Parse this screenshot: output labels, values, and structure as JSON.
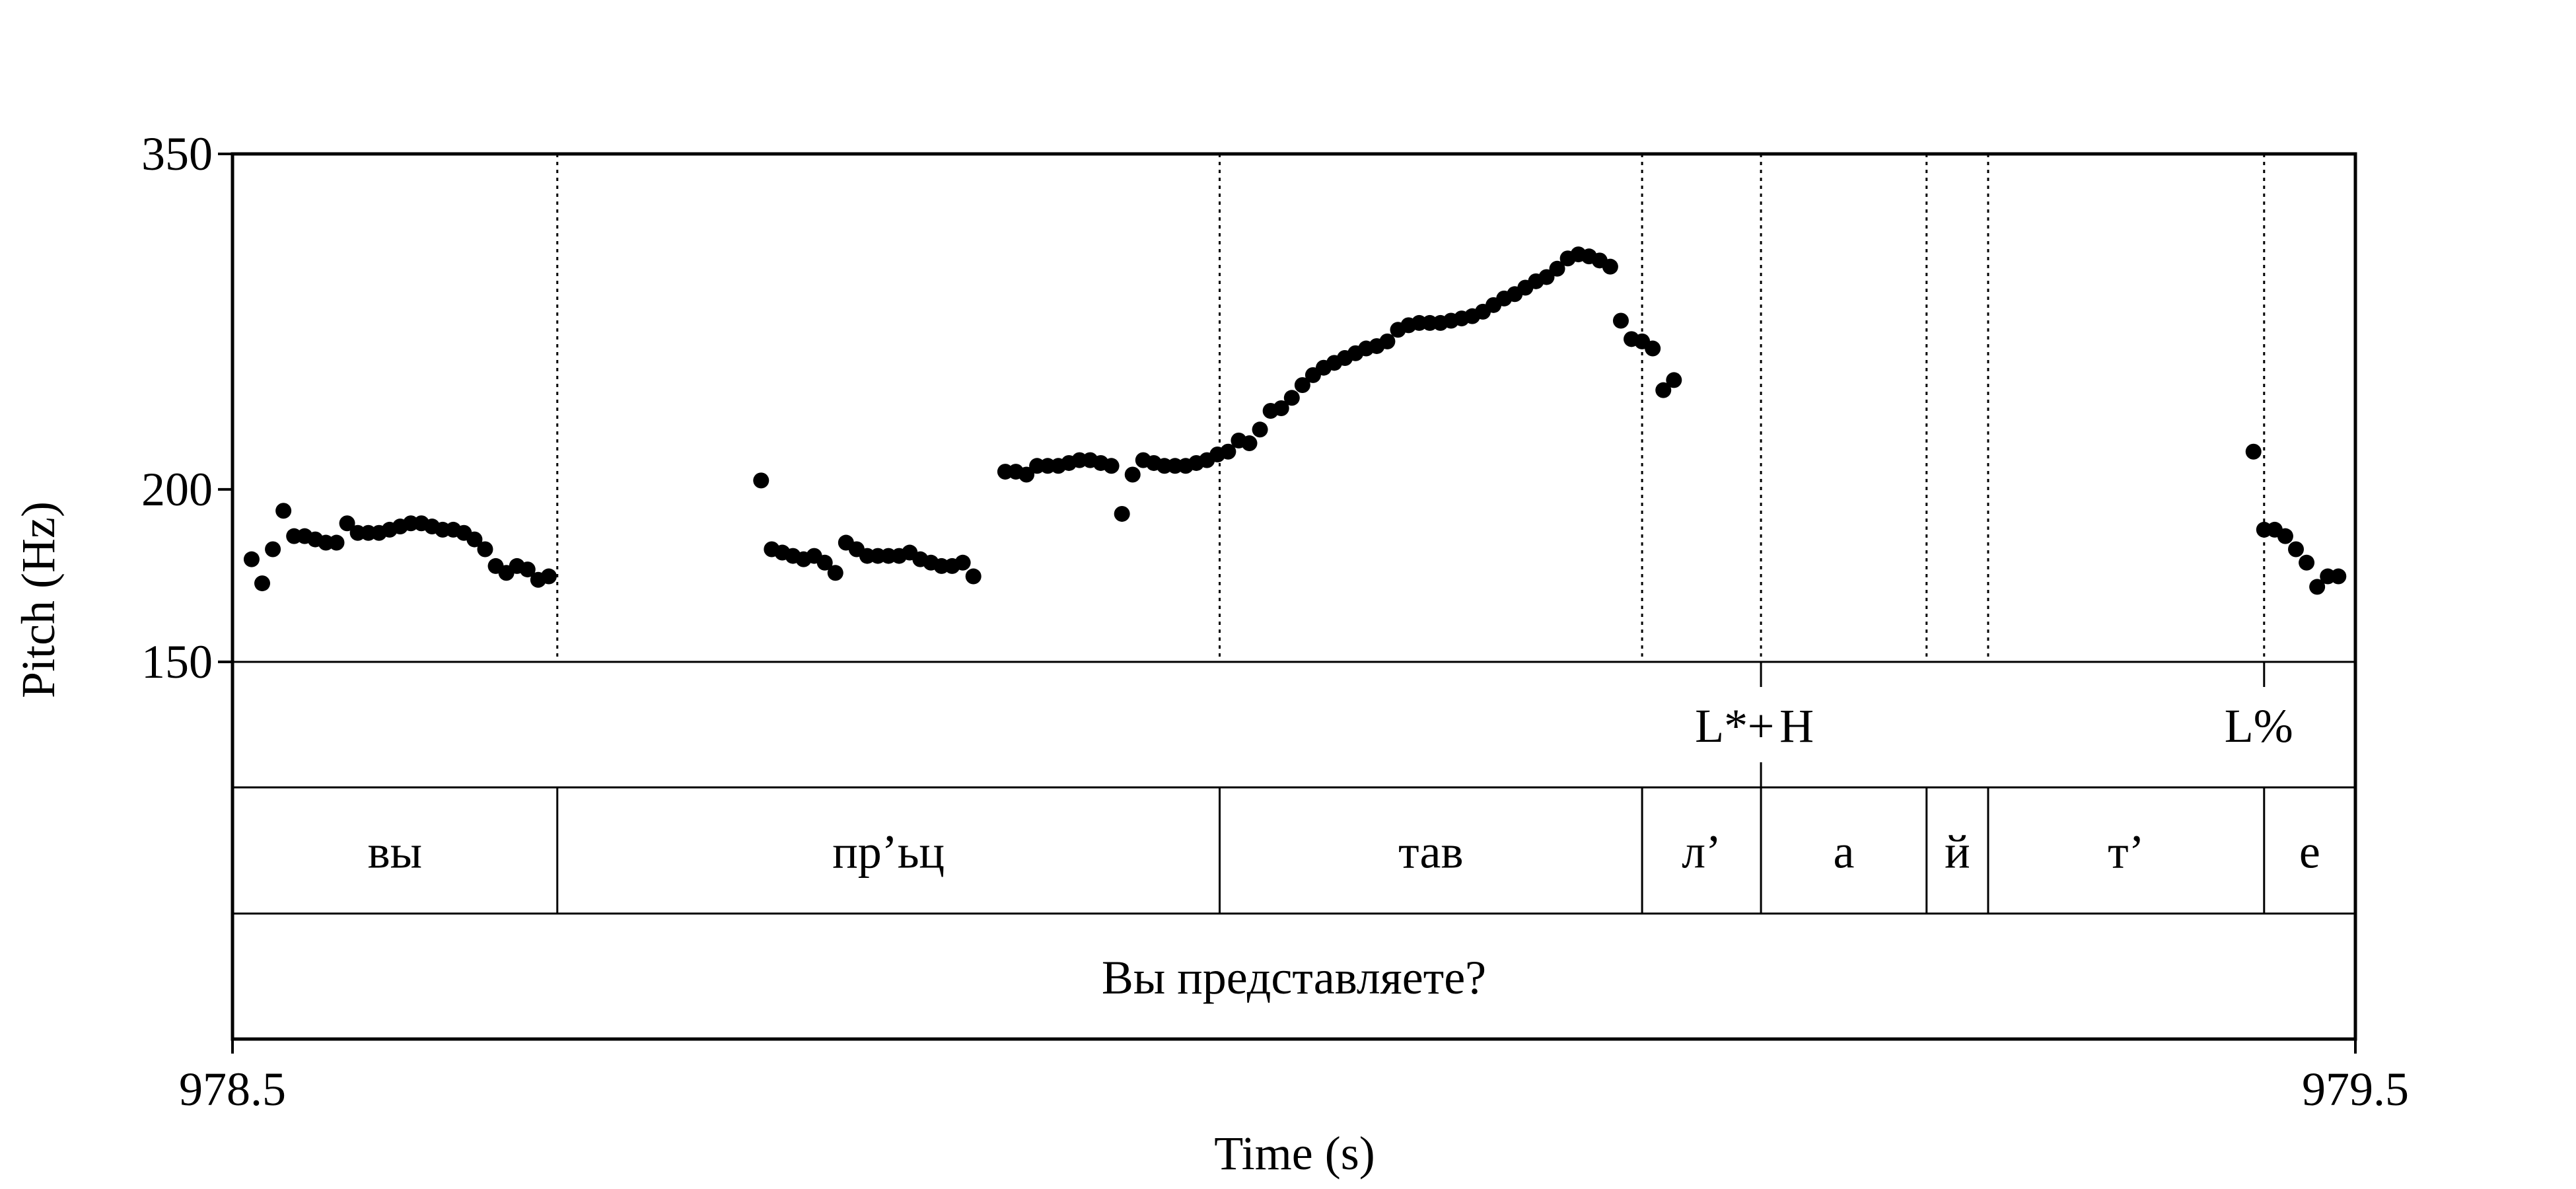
{
  "chart_data": {
    "type": "scatter",
    "xlabel": "Time (s)",
    "ylabel": "Pitch (Hz)",
    "xlim": [
      978.5,
      979.5
    ],
    "ylim": [
      150,
      350
    ],
    "x_tick_labels": [
      "978.5",
      "979.5"
    ],
    "x_ticks": [
      978.5,
      979.5
    ],
    "y_tick_labels": [
      "150",
      "200",
      "350"
    ],
    "y_ticks": [
      150,
      200,
      350
    ],
    "y_scale": "log",
    "boundaries": [
      978.653,
      978.965,
      979.164,
      979.22,
      979.298,
      979.327,
      979.457
    ],
    "tiers": [
      {
        "name": "tones",
        "intervals": [
          {
            "start": 979.164,
            "end": 979.22,
            "boundary_label": "L*",
            "point_time": 979.22,
            "mark": "+",
            "after_label": "H"
          },
          {
            "start": 979.457,
            "end": 979.5,
            "label": "L%"
          }
        ],
        "labels": {
          "l_star": "L*",
          "plus": "+",
          "h": "H",
          "l_percent": "L%"
        }
      },
      {
        "name": "syllables",
        "intervals": [
          {
            "start": 978.5,
            "end": 978.653,
            "label": "вы"
          },
          {
            "start": 978.653,
            "end": 978.965,
            "label": "пр’ьц"
          },
          {
            "start": 978.965,
            "end": 979.164,
            "label": "тав"
          },
          {
            "start": 979.164,
            "end": 979.22,
            "label": "л’"
          },
          {
            "start": 979.22,
            "end": 979.298,
            "label": "а"
          },
          {
            "start": 979.298,
            "end": 979.327,
            "label": "й"
          },
          {
            "start": 979.327,
            "end": 979.457,
            "label": "т’"
          },
          {
            "start": 979.457,
            "end": 979.5,
            "label": "е"
          }
        ]
      },
      {
        "name": "utterance",
        "intervals": [
          {
            "start": 978.5,
            "end": 979.5,
            "label": "Вы представляете?"
          }
        ]
      }
    ],
    "series": [
      {
        "points": [
          [
            978.509,
            178
          ],
          [
            978.514,
            171
          ],
          [
            978.519,
            181
          ],
          [
            978.524,
            193
          ],
          [
            978.529,
            185
          ],
          [
            978.534,
            185
          ],
          [
            978.539,
            184
          ],
          [
            978.544,
            183
          ],
          [
            978.549,
            183
          ],
          [
            978.554,
            189
          ],
          [
            978.559,
            186
          ],
          [
            978.564,
            186
          ],
          [
            978.569,
            186
          ],
          [
            978.574,
            187
          ],
          [
            978.579,
            188
          ],
          [
            978.584,
            189
          ],
          [
            978.589,
            189
          ],
          [
            978.594,
            188
          ],
          [
            978.599,
            187
          ],
          [
            978.604,
            187
          ],
          [
            978.609,
            186
          ],
          [
            978.614,
            184
          ],
          [
            978.619,
            181
          ],
          [
            978.624,
            176
          ],
          [
            978.629,
            174
          ],
          [
            978.634,
            176
          ],
          [
            978.639,
            175
          ],
          [
            978.644,
            172
          ],
          [
            978.649,
            173
          ],
          [
            978.749,
            203
          ],
          [
            978.754,
            181
          ],
          [
            978.759,
            180
          ],
          [
            978.764,
            179
          ],
          [
            978.769,
            178
          ],
          [
            978.774,
            179
          ],
          [
            978.779,
            177
          ],
          [
            978.784,
            174
          ],
          [
            978.789,
            183
          ],
          [
            978.794,
            181
          ],
          [
            978.799,
            179
          ],
          [
            978.804,
            179
          ],
          [
            978.809,
            179
          ],
          [
            978.814,
            179
          ],
          [
            978.819,
            180
          ],
          [
            978.824,
            178
          ],
          [
            978.829,
            177
          ],
          [
            978.834,
            176
          ],
          [
            978.839,
            176
          ],
          [
            978.844,
            177
          ],
          [
            978.849,
            173
          ],
          [
            978.864,
            206
          ],
          [
            978.869,
            206
          ],
          [
            978.874,
            205
          ],
          [
            978.879,
            208
          ],
          [
            978.884,
            208
          ],
          [
            978.889,
            208
          ],
          [
            978.894,
            209
          ],
          [
            978.899,
            210
          ],
          [
            978.904,
            210
          ],
          [
            978.909,
            209
          ],
          [
            978.914,
            208
          ],
          [
            978.919,
            192
          ],
          [
            978.924,
            205
          ],
          [
            978.929,
            210
          ],
          [
            978.934,
            209
          ],
          [
            978.939,
            208
          ],
          [
            978.944,
            208
          ],
          [
            978.949,
            208
          ],
          [
            978.954,
            209
          ],
          [
            978.959,
            210
          ],
          [
            978.964,
            212
          ],
          [
            978.969,
            213
          ],
          [
            978.974,
            217
          ],
          [
            978.979,
            216
          ],
          [
            978.984,
            221
          ],
          [
            978.989,
            228
          ],
          [
            978.994,
            229
          ],
          [
            978.999,
            233
          ],
          [
            979.004,
            238
          ],
          [
            979.009,
            242
          ],
          [
            979.014,
            245
          ],
          [
            979.019,
            247
          ],
          [
            979.024,
            249
          ],
          [
            979.029,
            251
          ],
          [
            979.034,
            253
          ],
          [
            979.039,
            254
          ],
          [
            979.044,
            256
          ],
          [
            979.049,
            261
          ],
          [
            979.054,
            263
          ],
          [
            979.059,
            264
          ],
          [
            979.064,
            264
          ],
          [
            979.069,
            264
          ],
          [
            979.074,
            265
          ],
          [
            979.079,
            266
          ],
          [
            979.084,
            267
          ],
          [
            979.089,
            269
          ],
          [
            979.094,
            272
          ],
          [
            979.099,
            275
          ],
          [
            979.104,
            277
          ],
          [
            979.109,
            280
          ],
          [
            979.114,
            283
          ],
          [
            979.119,
            285
          ],
          [
            979.124,
            289
          ],
          [
            979.129,
            294
          ],
          [
            979.134,
            296
          ],
          [
            979.139,
            295
          ],
          [
            979.144,
            293
          ],
          [
            979.149,
            290
          ],
          [
            979.154,
            265
          ],
          [
            979.159,
            257
          ],
          [
            979.164,
            256
          ],
          [
            979.169,
            253
          ],
          [
            979.174,
            236
          ],
          [
            979.179,
            240
          ],
          [
            979.452,
            213
          ],
          [
            979.457,
            187
          ],
          [
            979.462,
            187
          ],
          [
            979.467,
            185
          ],
          [
            979.472,
            181
          ],
          [
            979.477,
            177
          ],
          [
            979.482,
            170
          ],
          [
            979.487,
            173
          ],
          [
            979.492,
            173
          ]
        ]
      }
    ]
  }
}
